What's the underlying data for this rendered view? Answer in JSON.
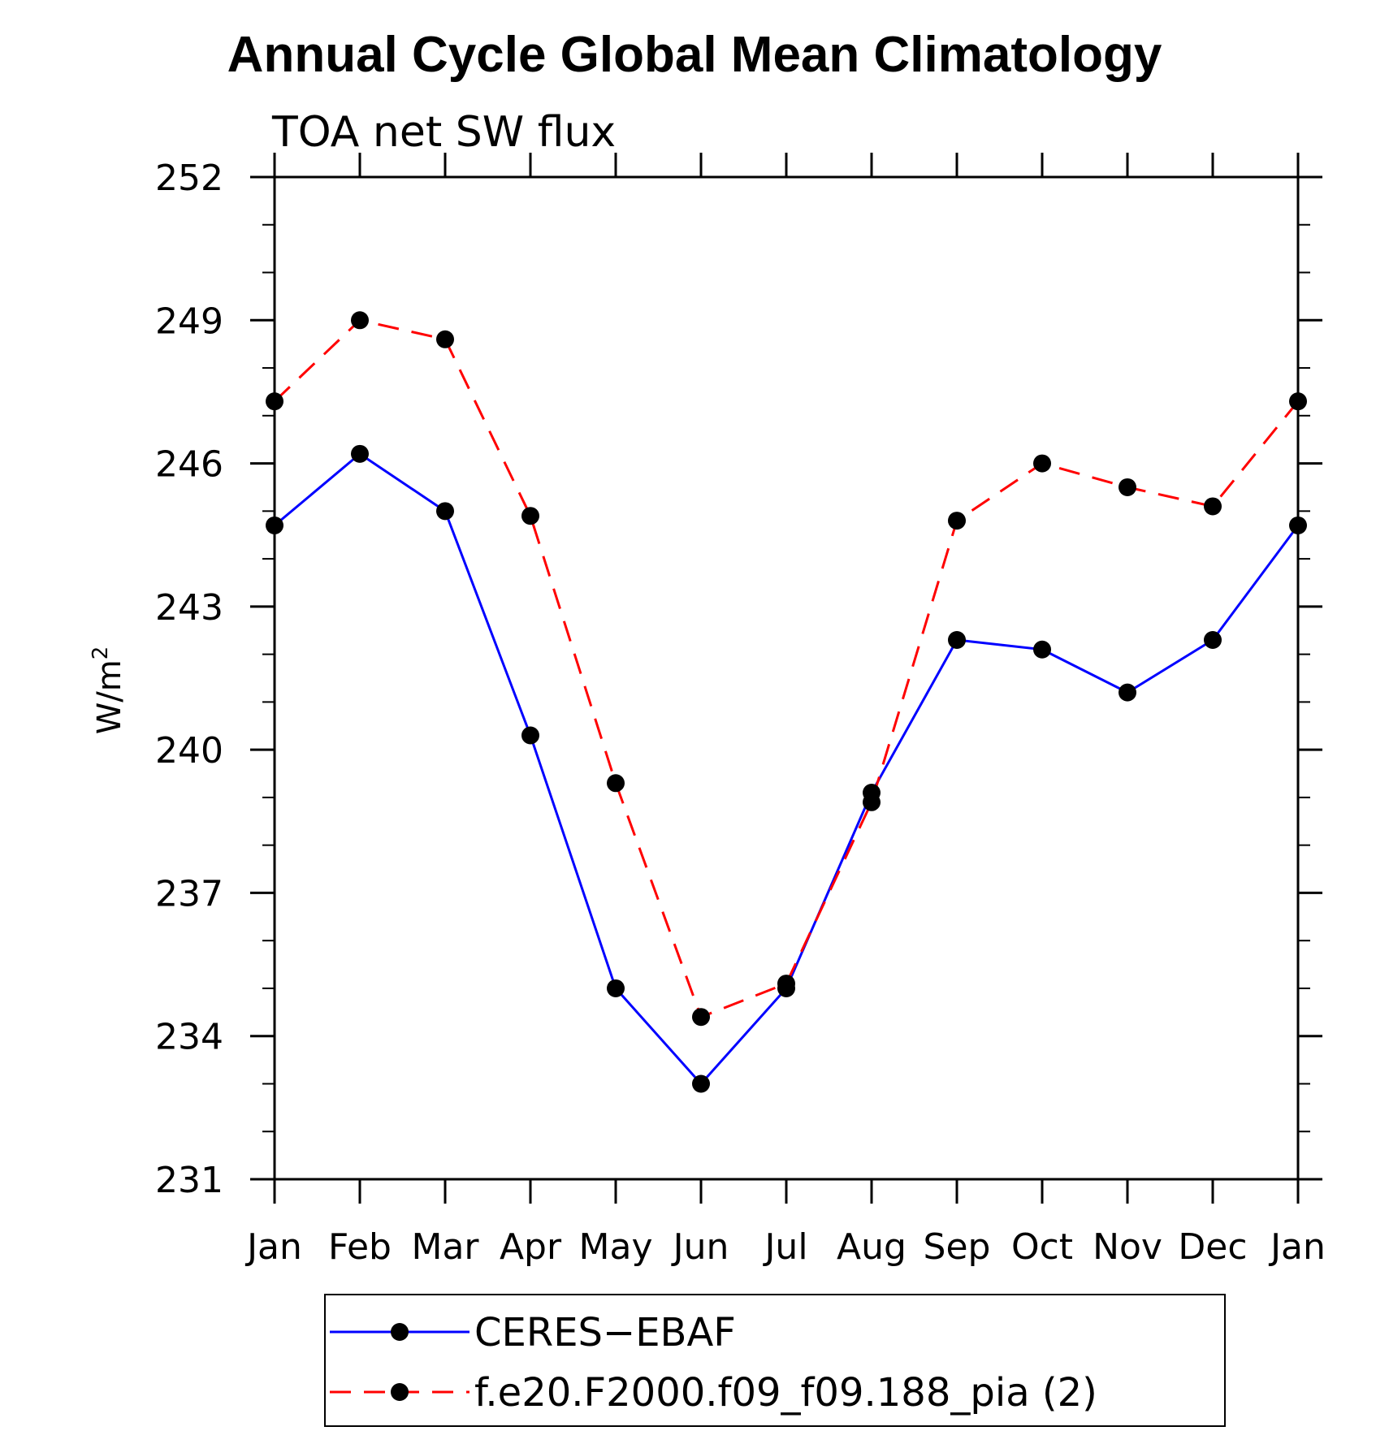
{
  "chart_data": {
    "type": "line",
    "title": "Annual Cycle Global Mean Climatology",
    "subtitle": "TOA net SW flux",
    "ylabel": "W/m",
    "ylabel_sup": "2",
    "xlabel": "",
    "categories": [
      "Jan",
      "Feb",
      "Mar",
      "Apr",
      "May",
      "Jun",
      "Jul",
      "Aug",
      "Sep",
      "Oct",
      "Nov",
      "Dec",
      "Jan"
    ],
    "ylim": [
      231,
      252
    ],
    "yticks": [
      231,
      234,
      237,
      240,
      243,
      246,
      249,
      252
    ],
    "series": [
      {
        "name": "CERES−EBAF",
        "color": "#0000ff",
        "dash": "solid",
        "values": [
          244.7,
          246.2,
          245.0,
          240.3,
          235.0,
          233.0,
          235.0,
          239.1,
          242.3,
          242.1,
          241.2,
          242.3,
          244.7
        ]
      },
      {
        "name": "f.e20.F2000.f09_f09.188_pia (2)",
        "color": "#ff0000",
        "dash": "dashed",
        "values": [
          247.3,
          249.0,
          248.6,
          244.9,
          239.3,
          234.4,
          235.1,
          238.9,
          244.8,
          246.0,
          245.5,
          245.1,
          247.3
        ]
      }
    ],
    "marker": "filled-circle",
    "legend_position": "bottom"
  }
}
